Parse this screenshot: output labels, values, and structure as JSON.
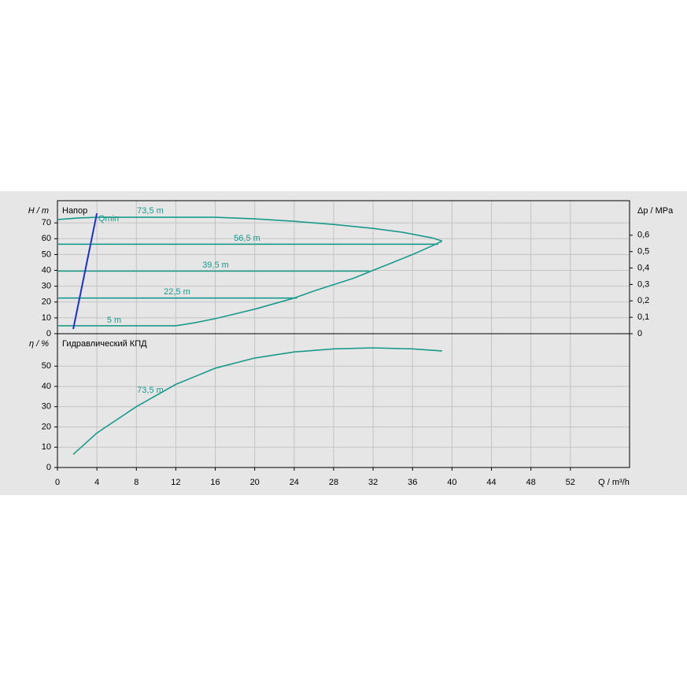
{
  "chart_data": [
    {
      "type": "line",
      "title": "Напор",
      "y_label": "H / m",
      "y2_label": "Δp / MPa",
      "xlim": [
        0,
        58
      ],
      "ylim": [
        0,
        84
      ],
      "yticks": [
        0,
        10,
        20,
        30,
        40,
        50,
        60,
        70
      ],
      "y2lim": [
        0,
        0.81
      ],
      "y2ticks": [
        0,
        {
          "value": 0.1,
          "label": "0,1"
        },
        {
          "value": 0.2,
          "label": "0,2"
        },
        {
          "value": 0.3,
          "label": "0,3"
        },
        {
          "value": 0.4,
          "label": "0,4"
        },
        {
          "value": 0.5,
          "label": "0,5"
        },
        {
          "value": 0.6,
          "label": "0,6"
        }
      ],
      "grid": true,
      "series": [
        {
          "name": "73,5 m",
          "color": "#1a9a8a",
          "x": [
            0,
            2,
            4,
            8,
            12,
            16,
            20,
            24,
            28,
            32,
            35,
            38,
            39
          ],
          "values": [
            72,
            73,
            73.5,
            73.5,
            73.5,
            73.5,
            72.5,
            71,
            69,
            66.5,
            64,
            60.5,
            58.5
          ]
        },
        {
          "name": "56,5 m",
          "color": "#1a9a8a",
          "x": [
            0,
            38.6
          ],
          "values": [
            56.5,
            56.5
          ]
        },
        {
          "name": "39,5 m",
          "color": "#1a9a8a",
          "x": [
            0,
            31.6
          ],
          "values": [
            39.5,
            39.5
          ]
        },
        {
          "name": "22,5 m",
          "color": "#1a9a8a",
          "x": [
            0,
            24.3
          ],
          "values": [
            22.5,
            22.5
          ]
        },
        {
          "name": "5 m",
          "color": "#1a9a8a",
          "x": [
            0,
            12,
            14,
            16,
            18,
            20,
            22,
            24,
            26,
            28,
            30,
            32,
            34,
            36,
            38,
            39
          ],
          "values": [
            5,
            5,
            7,
            9.5,
            12.5,
            15.5,
            19,
            22.5,
            27,
            31,
            35,
            40,
            45,
            50,
            55.5,
            58.5
          ]
        },
        {
          "name": "Qmin",
          "color": "#1c2fd0",
          "x": [
            1.6,
            4
          ],
          "values": [
            3,
            76
          ]
        }
      ]
    },
    {
      "type": "line",
      "title": "Гидравлический КПД",
      "y_label": "η / %",
      "x_label": "Q / m³/h",
      "xlim": [
        0,
        58
      ],
      "xticks": [
        0,
        4,
        8,
        12,
        16,
        20,
        24,
        28,
        32,
        36,
        40,
        44,
        48,
        52
      ],
      "ylim": [
        0,
        66
      ],
      "yticks": [
        0,
        10,
        20,
        30,
        40,
        50
      ],
      "grid": true,
      "series": [
        {
          "name": "73,5 m",
          "color": "#1a9a8a",
          "x": [
            1.6,
            4,
            8,
            12,
            16,
            20,
            24,
            28,
            32,
            36,
            39
          ],
          "values": [
            6.5,
            17,
            30,
            41,
            49,
            54,
            57,
            58.5,
            59,
            58.5,
            57.5
          ]
        }
      ]
    }
  ]
}
